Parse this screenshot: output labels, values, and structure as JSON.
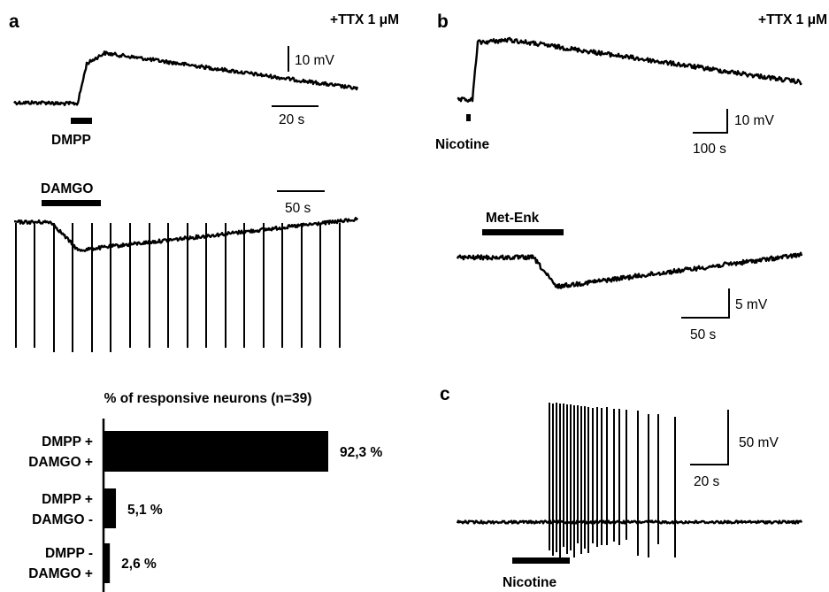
{
  "panels": {
    "a": {
      "letter": "a",
      "condition": "+TTX 1 μM"
    },
    "b": {
      "letter": "b",
      "condition": "+TTX 1 μM"
    },
    "c": {
      "letter": "c"
    }
  },
  "traces": {
    "dmpp": {
      "drug": "DMPP",
      "scale_v": "10 mV",
      "scale_t": "20 s"
    },
    "damgo": {
      "drug": "DAMGO",
      "scale_t": "50 s"
    },
    "nicotine_b": {
      "drug": "Nicotine",
      "scale_v": "10 mV",
      "scale_t": "100 s"
    },
    "metenk": {
      "drug": "Met-Enk",
      "scale_v": "5 mV",
      "scale_t": "50 s"
    },
    "nicotine_c": {
      "drug": "Nicotine",
      "scale_v": "50 mV",
      "scale_t": "20 s"
    }
  },
  "chart_data": {
    "type": "bar",
    "orientation": "horizontal",
    "title": "% of responsive neurons (n=39)",
    "categories": [
      {
        "line1": "DMPP +",
        "line2": "DAMGO +"
      },
      {
        "line1": "DMPP +",
        "line2": "DAMGO -"
      },
      {
        "line1": "DMPP -",
        "line2": "DAMGO +"
      }
    ],
    "values": [
      92.3,
      5.1,
      2.6
    ],
    "value_labels": [
      "92,3 %",
      "5,1 %",
      "2,6 %"
    ],
    "xlim": [
      0,
      100
    ],
    "color": "#000000"
  }
}
